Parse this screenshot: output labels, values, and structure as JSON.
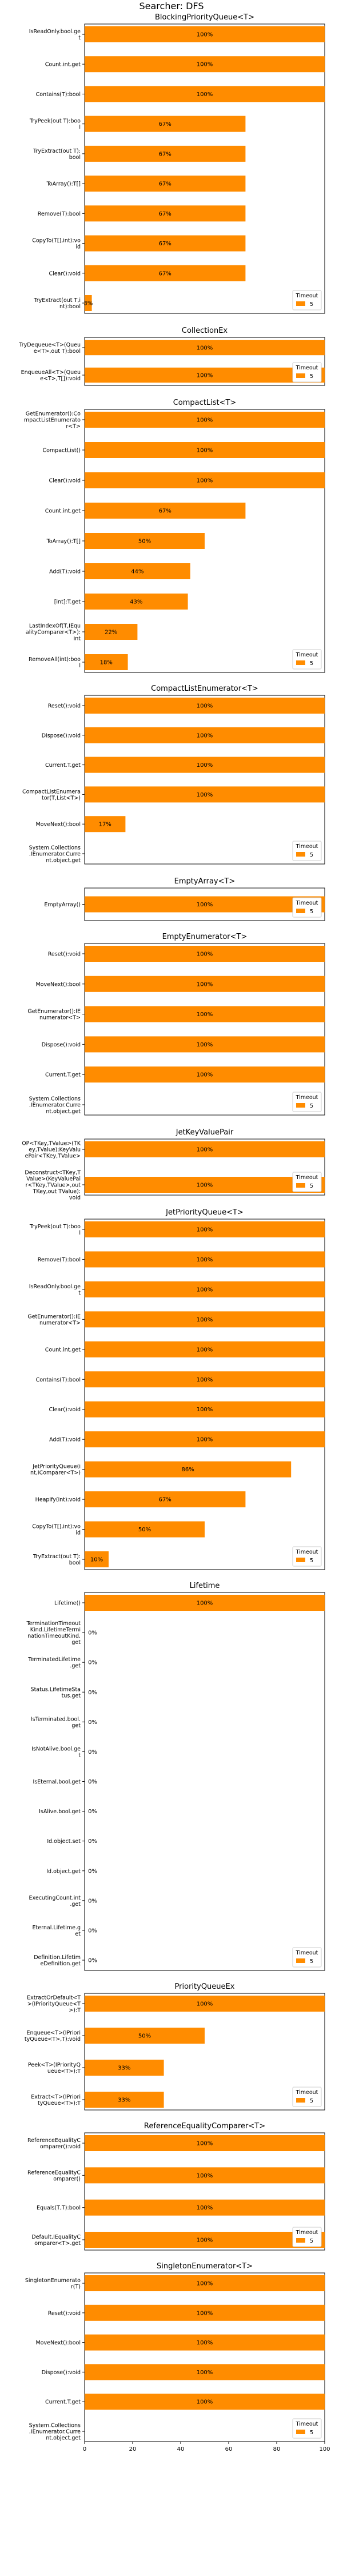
{
  "figure_title": "Searcher: DFS",
  "chart_data": [
    {
      "type": "bar",
      "orientation": "horizontal",
      "title": "BlockingPriorityQueue<T>",
      "categories": [
        "IsReadOnly.bool.get",
        "Count.int.get",
        "Contains(T):bool",
        "TryPeek(out T):bool",
        "TryExtract(out T):bool",
        "ToArray():T[]",
        "Remove(T):bool",
        "CopyTo(T[],int):void",
        "Clear():void",
        "TryExtract(out T,int):bool"
      ],
      "values": [
        100,
        100,
        100,
        67,
        67,
        67,
        67,
        67,
        67,
        3
      ],
      "value_labels": [
        "100%",
        "100%",
        "100%",
        "67%",
        "67%",
        "67%",
        "67%",
        "67%",
        "67%",
        "3%"
      ],
      "legend_title": "Timeout",
      "legend_items": [
        "5"
      ],
      "xlim": [
        0,
        100
      ]
    },
    {
      "type": "bar",
      "orientation": "horizontal",
      "title": "CollectionEx",
      "categories": [
        "TryDequeue<T>(Queue<T>,out T):bool",
        "EnqueueAll<T>(Queue<T>,T[]):void"
      ],
      "values": [
        100,
        100
      ],
      "value_labels": [
        "100%",
        "100%"
      ],
      "legend_title": "Timeout",
      "legend_items": [
        "5"
      ],
      "xlim": [
        0,
        100
      ]
    },
    {
      "type": "bar",
      "orientation": "horizontal",
      "title": "CompactList<T>",
      "categories": [
        "GetEnumerator():CompactListEnumerator<T>",
        "CompactList()",
        "Clear():void",
        "Count.int.get",
        "ToArray():T[]",
        "Add(T):void",
        "[int]:T.get",
        "LastIndexOf(T,IEqualityComparer<T>):int",
        "RemoveAll(int):bool"
      ],
      "values": [
        100,
        100,
        100,
        67,
        50,
        44,
        43,
        22,
        18
      ],
      "value_labels": [
        "100%",
        "100%",
        "100%",
        "67%",
        "50%",
        "44%",
        "43%",
        "22%",
        "18%"
      ],
      "legend_title": "Timeout",
      "legend_items": [
        "5"
      ],
      "xlim": [
        0,
        100
      ]
    },
    {
      "type": "bar",
      "orientation": "horizontal",
      "title": "CompactListEnumerator<T>",
      "categories": [
        "Reset():void",
        "Dispose():void",
        "Current.T.get",
        "CompactListEnumerator(T,List<T>)",
        "MoveNext():bool",
        "System.Collections.IEnumerator.Current.object.get"
      ],
      "values": [
        100,
        100,
        100,
        100,
        17,
        0
      ],
      "value_labels": [
        "100%",
        "100%",
        "100%",
        "100%",
        "17%",
        ""
      ],
      "legend_title": "Timeout",
      "legend_items": [
        "5"
      ],
      "xlim": [
        0,
        100
      ]
    },
    {
      "type": "bar",
      "orientation": "horizontal",
      "title": "EmptyArray<T>",
      "categories": [
        "EmptyArray()"
      ],
      "values": [
        100
      ],
      "value_labels": [
        "100%"
      ],
      "legend_title": "Timeout",
      "legend_items": [
        "5"
      ],
      "xlim": [
        0,
        100
      ]
    },
    {
      "type": "bar",
      "orientation": "horizontal",
      "title": "EmptyEnumerator<T>",
      "categories": [
        "Reset():void",
        "MoveNext():bool",
        "GetEnumerator():IEnumerator<T>",
        "Dispose():void",
        "Current.T.get",
        "System.Collections.IEnumerator.Current.object.get"
      ],
      "values": [
        100,
        100,
        100,
        100,
        100,
        0
      ],
      "value_labels": [
        "100%",
        "100%",
        "100%",
        "100%",
        "100%",
        ""
      ],
      "legend_title": "Timeout",
      "legend_items": [
        "5"
      ],
      "xlim": [
        0,
        100
      ]
    },
    {
      "type": "bar",
      "orientation": "horizontal",
      "title": "JetKeyValuePair",
      "categories": [
        "OP<TKey,TValue>(TKey,TValue):KeyValuePair<TKey,TValue>",
        "Deconstruct<TKey,TValue>(KeyValuePair<TKey,TValue>,out TKey,out TValue):void"
      ],
      "values": [
        100,
        100
      ],
      "value_labels": [
        "100%",
        "100%"
      ],
      "legend_title": "Timeout",
      "legend_items": [
        "5"
      ],
      "xlim": [
        0,
        100
      ]
    },
    {
      "type": "bar",
      "orientation": "horizontal",
      "title": "JetPriorityQueue<T>",
      "categories": [
        "TryPeek(out T):bool",
        "Remove(T):bool",
        "IsReadOnly.bool.get",
        "GetEnumerator():IEnumerator<T>",
        "Count.int.get",
        "Contains(T):bool",
        "Clear():void",
        "Add(T):void",
        "JetPriorityQueue(int,IComparer<T>)",
        "Heapify(int):void",
        "CopyTo(T[],int):void",
        "TryExtract(out T):bool"
      ],
      "values": [
        100,
        100,
        100,
        100,
        100,
        100,
        100,
        100,
        86,
        67,
        50,
        10
      ],
      "value_labels": [
        "100%",
        "100%",
        "100%",
        "100%",
        "100%",
        "100%",
        "100%",
        "100%",
        "86%",
        "67%",
        "50%",
        "10%"
      ],
      "legend_title": "Timeout",
      "legend_items": [
        "5"
      ],
      "xlim": [
        0,
        100
      ]
    },
    {
      "type": "bar",
      "orientation": "horizontal",
      "title": "Lifetime",
      "categories": [
        "Lifetime()",
        "TerminationTimeoutKind.LifetimeTerminationTimeoutKind.get",
        "TerminatedLifetime.get",
        "Status.LifetimeStatus.get",
        "IsTerminated.bool.get",
        "IsNotAlive.bool.get",
        "IsEternal.bool.get",
        "IsAlive.bool.get",
        "Id.object.set",
        "Id.object.get",
        "ExecutingCount.int.get",
        "Eternal.Lifetime.get",
        "Definition.LifetimeDefinition.get"
      ],
      "values": [
        100,
        0,
        0,
        0,
        0,
        0,
        0,
        0,
        0,
        0,
        0,
        0,
        0
      ],
      "value_labels": [
        "100%",
        "0%",
        "0%",
        "0%",
        "0%",
        "0%",
        "0%",
        "0%",
        "0%",
        "0%",
        "0%",
        "0%",
        "0%"
      ],
      "legend_title": "Timeout",
      "legend_items": [
        "5"
      ],
      "xlim": [
        0,
        100
      ]
    },
    {
      "type": "bar",
      "orientation": "horizontal",
      "title": "PriorityQueueEx",
      "categories": [
        "ExtractOrDefault<T>(IPriorityQueue<T>):T",
        "Enqueue<T>(IPriorityQueue<T>,T):void",
        "Peek<T>(IPriorityQueue<T>):T",
        "Extract<T>(IPriorityQueue<T>):T"
      ],
      "values": [
        100,
        50,
        33,
        33
      ],
      "value_labels": [
        "100%",
        "50%",
        "33%",
        "33%"
      ],
      "legend_title": "Timeout",
      "legend_items": [
        "5"
      ],
      "xlim": [
        0,
        100
      ]
    },
    {
      "type": "bar",
      "orientation": "horizontal",
      "title": "ReferenceEqualityComparer<T>",
      "categories": [
        "ReferenceEqualityComparer():void",
        "ReferenceEqualityComparer()",
        "Equals(T,T):bool",
        "Default.IEqualityComparer<T>.get"
      ],
      "values": [
        100,
        100,
        100,
        100
      ],
      "value_labels": [
        "100%",
        "100%",
        "100%",
        "100%"
      ],
      "legend_title": "Timeout",
      "legend_items": [
        "5"
      ],
      "xlim": [
        0,
        100
      ]
    },
    {
      "type": "bar",
      "orientation": "horizontal",
      "title": "SingletonEnumerator<T>",
      "categories": [
        "SingletonEnumerator(T)",
        "Reset():void",
        "MoveNext():bool",
        "Dispose():void",
        "Current.T.get",
        "System.Collections.IEnumerator.Current.object.get"
      ],
      "values": [
        100,
        100,
        100,
        100,
        100,
        0
      ],
      "value_labels": [
        "100%",
        "100%",
        "100%",
        "100%",
        "100%",
        ""
      ],
      "legend_title": "Timeout",
      "legend_items": [
        "5"
      ],
      "xlim": [
        0,
        100
      ],
      "x_ticks": [
        0,
        20,
        40,
        60,
        80,
        100
      ]
    }
  ],
  "colors": {
    "bar": "#ff8c00",
    "bar_edge": "#8c4a00",
    "axis": "#000000",
    "text": "#000000"
  }
}
